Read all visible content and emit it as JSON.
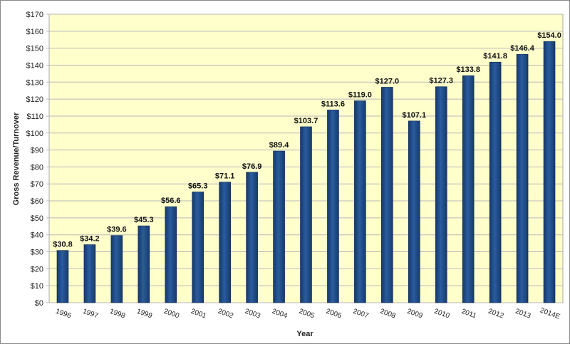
{
  "chart_data": {
    "type": "bar",
    "title": "",
    "xlabel": "Year",
    "ylabel": "Gross Revenue/Turnover",
    "ylim": [
      0,
      170
    ],
    "ytick_step": 10,
    "ytick_prefix": "$",
    "grid": true,
    "categories": [
      "1996",
      "1997",
      "1998",
      "1999",
      "2000",
      "2001",
      "2002",
      "2003",
      "2004",
      "2005",
      "2006",
      "2007",
      "2008",
      "2009",
      "2010",
      "2011",
      "2012",
      "2013",
      "2014E"
    ],
    "values": [
      30.8,
      34.2,
      39.6,
      45.3,
      56.6,
      65.3,
      71.1,
      76.9,
      89.4,
      103.7,
      113.6,
      119.0,
      127.0,
      107.1,
      127.3,
      133.8,
      141.8,
      146.4,
      154.0
    ],
    "data_labels": [
      "$30.8",
      "$34.2",
      "$39.6",
      "$45.3",
      "$56.6",
      "$65.3",
      "$71.1",
      "$76.9",
      "$89.4",
      "$103.7",
      "$113.6",
      "$119.0",
      "$127.0",
      "$107.1",
      "$127.3",
      "$133.8",
      "$141.8",
      "$146.4",
      "$154.0"
    ],
    "colors": {
      "bar": "#1f4e8a",
      "plot_background": "#ffffcc",
      "grid": "#b8b8b8"
    }
  }
}
